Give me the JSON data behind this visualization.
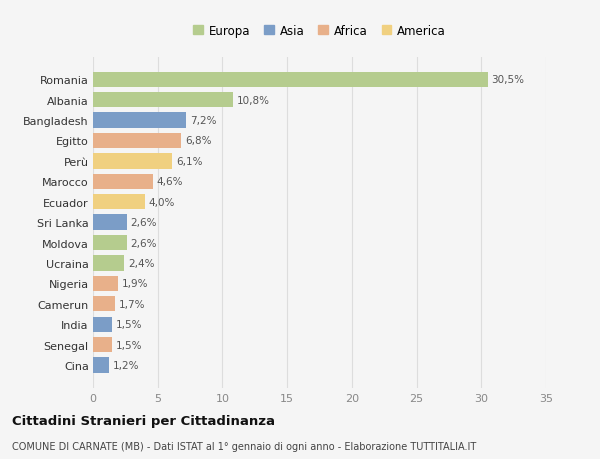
{
  "countries": [
    "Romania",
    "Albania",
    "Bangladesh",
    "Egitto",
    "Perù",
    "Marocco",
    "Ecuador",
    "Sri Lanka",
    "Moldova",
    "Ucraina",
    "Nigeria",
    "Camerun",
    "India",
    "Senegal",
    "Cina"
  ],
  "values": [
    30.5,
    10.8,
    7.2,
    6.8,
    6.1,
    4.6,
    4.0,
    2.6,
    2.6,
    2.4,
    1.9,
    1.7,
    1.5,
    1.5,
    1.2
  ],
  "labels": [
    "30,5%",
    "10,8%",
    "7,2%",
    "6,8%",
    "6,1%",
    "4,6%",
    "4,0%",
    "2,6%",
    "2,6%",
    "2,4%",
    "1,9%",
    "1,7%",
    "1,5%",
    "1,5%",
    "1,2%"
  ],
  "colors": [
    "#b5cc8e",
    "#b5cc8e",
    "#7b9dc7",
    "#e8b08a",
    "#f0d080",
    "#e8b08a",
    "#f0d080",
    "#7b9dc7",
    "#b5cc8e",
    "#b5cc8e",
    "#e8b08a",
    "#e8b08a",
    "#7b9dc7",
    "#e8b08a",
    "#7b9dc7"
  ],
  "legend_labels": [
    "Europa",
    "Asia",
    "Africa",
    "America"
  ],
  "legend_colors": [
    "#b5cc8e",
    "#7b9dc7",
    "#e8b08a",
    "#f0d080"
  ],
  "xlim": [
    0,
    35
  ],
  "xticks": [
    0,
    5,
    10,
    15,
    20,
    25,
    30,
    35
  ],
  "background_color": "#f5f5f5",
  "plot_bg_color": "#f5f5f5",
  "title": "Cittadini Stranieri per Cittadinanza",
  "subtitle": "COMUNE DI CARNATE (MB) - Dati ISTAT al 1° gennaio di ogni anno - Elaborazione TUTTITALIA.IT",
  "grid_color": "#dddddd",
  "label_color": "#555555",
  "tick_color": "#888888"
}
